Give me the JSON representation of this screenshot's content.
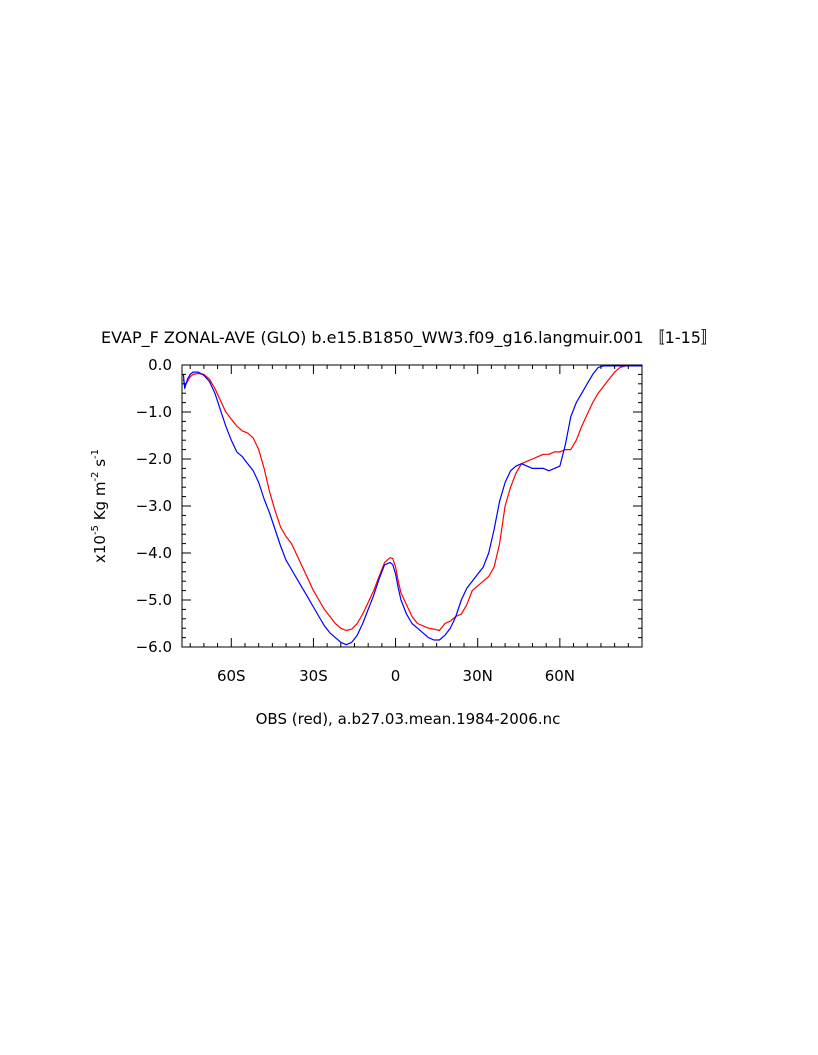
{
  "chart_data": {
    "type": "line",
    "title": "EVAP_F ZONAL-AVE (GLO) b.e15.B1850_WW3.f09_g16.langmuir.001 〚1-15〛",
    "xlabel": "OBS (red), a.b27.03.mean.1984-2006.nc",
    "ylabel_main": "x10",
    "ylabel_exp": "-5",
    "ylabel_mid": " Kg m",
    "ylabel_exp2": "-2",
    "ylabel_mid2": " s",
    "ylabel_exp3": "-1",
    "xlim": [
      -78,
      90
    ],
    "ylim": [
      -6.0,
      0.0
    ],
    "x_ticks": [
      {
        "value": -60,
        "label": "60S"
      },
      {
        "value": -30,
        "label": "30S"
      },
      {
        "value": 0,
        "label": "0"
      },
      {
        "value": 30,
        "label": "30N"
      },
      {
        "value": 60,
        "label": "60N"
      }
    ],
    "y_ticks": [
      {
        "value": 0.0,
        "label": "0.0"
      },
      {
        "value": -1.0,
        "label": "−1.0"
      },
      {
        "value": -2.0,
        "label": "−2.0"
      },
      {
        "value": -3.0,
        "label": "−3.0"
      },
      {
        "value": -4.0,
        "label": "−4.0"
      },
      {
        "value": -5.0,
        "label": "−5.0"
      },
      {
        "value": -6.0,
        "label": "−6.0"
      }
    ],
    "series": [
      {
        "color": "#ff0000",
        "x": [
          -77.5,
          -77,
          -76,
          -75,
          -74,
          -72,
          -70,
          -68,
          -66,
          -64,
          -62,
          -60,
          -58,
          -56,
          -54,
          -52,
          -50,
          -48,
          -46,
          -44,
          -42,
          -40,
          -38,
          -36,
          -34,
          -32,
          -30,
          -28,
          -26,
          -24,
          -22,
          -20,
          -18,
          -16,
          -14,
          -12,
          -10,
          -8,
          -6,
          -4,
          -2,
          -1,
          0,
          1,
          2,
          4,
          6,
          8,
          10,
          12,
          14,
          16,
          18,
          20,
          22,
          24,
          26,
          28,
          30,
          32,
          34,
          36,
          38,
          40,
          42,
          44,
          46,
          48,
          50,
          52,
          54,
          56,
          58,
          60,
          62,
          64,
          66,
          68,
          70,
          72,
          74,
          76,
          78,
          80,
          82,
          84,
          86,
          88,
          90
        ],
        "y": [
          -0.3,
          -0.45,
          -0.35,
          -0.25,
          -0.2,
          -0.18,
          -0.2,
          -0.3,
          -0.5,
          -0.75,
          -1.0,
          -1.15,
          -1.3,
          -1.4,
          -1.45,
          -1.55,
          -1.8,
          -2.2,
          -2.7,
          -3.1,
          -3.45,
          -3.65,
          -3.8,
          -4.05,
          -4.3,
          -4.55,
          -4.8,
          -5.0,
          -5.2,
          -5.35,
          -5.5,
          -5.6,
          -5.65,
          -5.62,
          -5.5,
          -5.3,
          -5.05,
          -4.8,
          -4.5,
          -4.2,
          -4.1,
          -4.12,
          -4.3,
          -4.6,
          -4.85,
          -5.1,
          -5.35,
          -5.5,
          -5.55,
          -5.6,
          -5.62,
          -5.65,
          -5.5,
          -5.45,
          -5.35,
          -5.3,
          -5.1,
          -4.8,
          -4.7,
          -4.6,
          -4.5,
          -4.3,
          -3.8,
          -3.0,
          -2.6,
          -2.3,
          -2.1,
          -2.05,
          -2.0,
          -1.95,
          -1.9,
          -1.9,
          -1.85,
          -1.85,
          -1.8,
          -1.8,
          -1.6,
          -1.3,
          -1.05,
          -0.8,
          -0.6,
          -0.45,
          -0.3,
          -0.15,
          -0.05,
          -0.02,
          -0.02,
          -0.02,
          -0.02
        ]
      },
      {
        "color": "#0000ff",
        "x": [
          -77.5,
          -77,
          -76,
          -75,
          -74,
          -72,
          -70,
          -68,
          -66,
          -64,
          -62,
          -60,
          -58,
          -56,
          -54,
          -52,
          -50,
          -48,
          -46,
          -44,
          -42,
          -40,
          -38,
          -36,
          -34,
          -32,
          -30,
          -28,
          -26,
          -24,
          -22,
          -20,
          -18,
          -16,
          -14,
          -12,
          -10,
          -8,
          -6,
          -4,
          -2,
          -1,
          0,
          1,
          2,
          4,
          6,
          8,
          10,
          12,
          14,
          16,
          18,
          20,
          22,
          24,
          26,
          28,
          30,
          32,
          34,
          36,
          38,
          40,
          42,
          44,
          46,
          48,
          50,
          52,
          54,
          56,
          58,
          60,
          62,
          64,
          66,
          68,
          70,
          72,
          74,
          76,
          78,
          80,
          82,
          84,
          86,
          88,
          90
        ],
        "y": [
          -0.2,
          -0.5,
          -0.3,
          -0.2,
          -0.15,
          -0.15,
          -0.22,
          -0.35,
          -0.6,
          -0.95,
          -1.3,
          -1.6,
          -1.85,
          -1.95,
          -2.1,
          -2.25,
          -2.5,
          -2.85,
          -3.15,
          -3.5,
          -3.85,
          -4.15,
          -4.35,
          -4.55,
          -4.75,
          -4.95,
          -5.15,
          -5.35,
          -5.55,
          -5.7,
          -5.8,
          -5.9,
          -5.95,
          -5.9,
          -5.75,
          -5.5,
          -5.2,
          -4.9,
          -4.55,
          -4.25,
          -4.2,
          -4.25,
          -4.45,
          -4.75,
          -5.0,
          -5.3,
          -5.5,
          -5.6,
          -5.7,
          -5.8,
          -5.85,
          -5.85,
          -5.75,
          -5.6,
          -5.35,
          -5.0,
          -4.75,
          -4.6,
          -4.45,
          -4.3,
          -4.0,
          -3.5,
          -2.9,
          -2.5,
          -2.25,
          -2.15,
          -2.1,
          -2.15,
          -2.2,
          -2.2,
          -2.2,
          -2.25,
          -2.2,
          -2.15,
          -1.7,
          -1.1,
          -0.8,
          -0.6,
          -0.4,
          -0.2,
          -0.05,
          -0.02,
          -0.02,
          -0.02,
          -0.02,
          -0.02,
          -0.02,
          -0.02,
          -0.02
        ]
      }
    ]
  }
}
